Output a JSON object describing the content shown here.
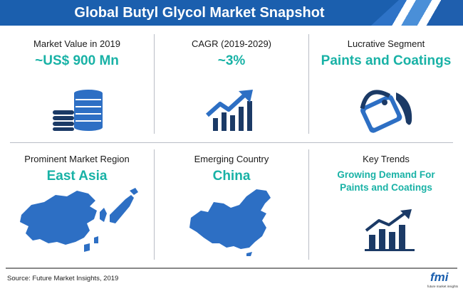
{
  "title": "Global Butyl Glycol Market Snapshot",
  "cards": [
    {
      "label": "Market Value in 2019",
      "value": "~US$ 900 Mn",
      "icon": "coins-stack-icon"
    },
    {
      "label": "CAGR (2019-2029)",
      "value": "~3%",
      "icon": "growth-bar-chart-icon"
    },
    {
      "label": "Lucrative Segment",
      "value": "Paints and Coatings",
      "icon": "paint-bucket-icon"
    },
    {
      "label": "Prominent Market Region",
      "value": "East Asia",
      "icon": "east-asia-map-icon"
    },
    {
      "label": "Emerging Country",
      "value": "China",
      "icon": "china-map-icon"
    },
    {
      "label": "Key Trends",
      "value_lines": [
        "Growing Demand For",
        "Paints and Coatings"
      ],
      "icon": "trend-bar-chart-icon"
    }
  ],
  "source": "Source: Future Market Insights, 2019",
  "logo": {
    "text": "fmi",
    "tagline": "future market insights"
  },
  "colors": {
    "accent": "#19b2a6",
    "navy": "#1b3a66",
    "banner": "#1b5fae"
  }
}
